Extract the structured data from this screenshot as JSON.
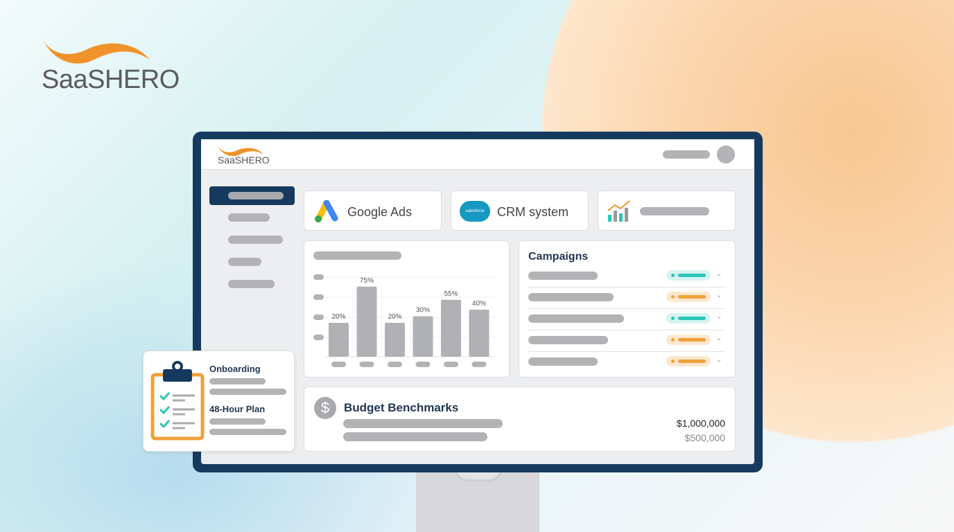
{
  "brand": {
    "name": "SaaSHERO",
    "accent": "#f0932b",
    "navy": "#163a5f"
  },
  "screen": {
    "logo": "SaaSHERO",
    "integrations": [
      {
        "label": "Google Ads",
        "icon": "google-ads-icon"
      },
      {
        "label": "CRM system",
        "icon": "salesforce-cloud-icon",
        "logo_text": "salesforce"
      },
      {
        "icon": "analytics-chart-icon"
      }
    ],
    "campaigns": {
      "title": "Campaigns",
      "rows": [
        {
          "status": "teal"
        },
        {
          "status": "orange"
        },
        {
          "status": "teal"
        },
        {
          "status": "orange"
        },
        {
          "status": "orange"
        }
      ],
      "colors": {
        "teal": "#2bc4b8",
        "orange": "#f0a03a"
      }
    },
    "budget": {
      "title": "Budget Benchmarks",
      "icon": "dollar-icon",
      "value_primary": "$1,000,000",
      "value_secondary": "$500,000"
    }
  },
  "onboarding": {
    "title": "Onboarding",
    "subtitle": "48-Hour Plan",
    "icon": "clipboard-checklist-icon"
  },
  "chart_data": {
    "type": "bar",
    "categories": [
      "",
      "",
      "",
      "",
      "",
      ""
    ],
    "values": [
      20,
      75,
      20,
      30,
      55,
      40
    ],
    "labels": [
      "20%",
      "75%",
      "20%",
      "30%",
      "55%",
      "40%"
    ],
    "grid": true
  }
}
